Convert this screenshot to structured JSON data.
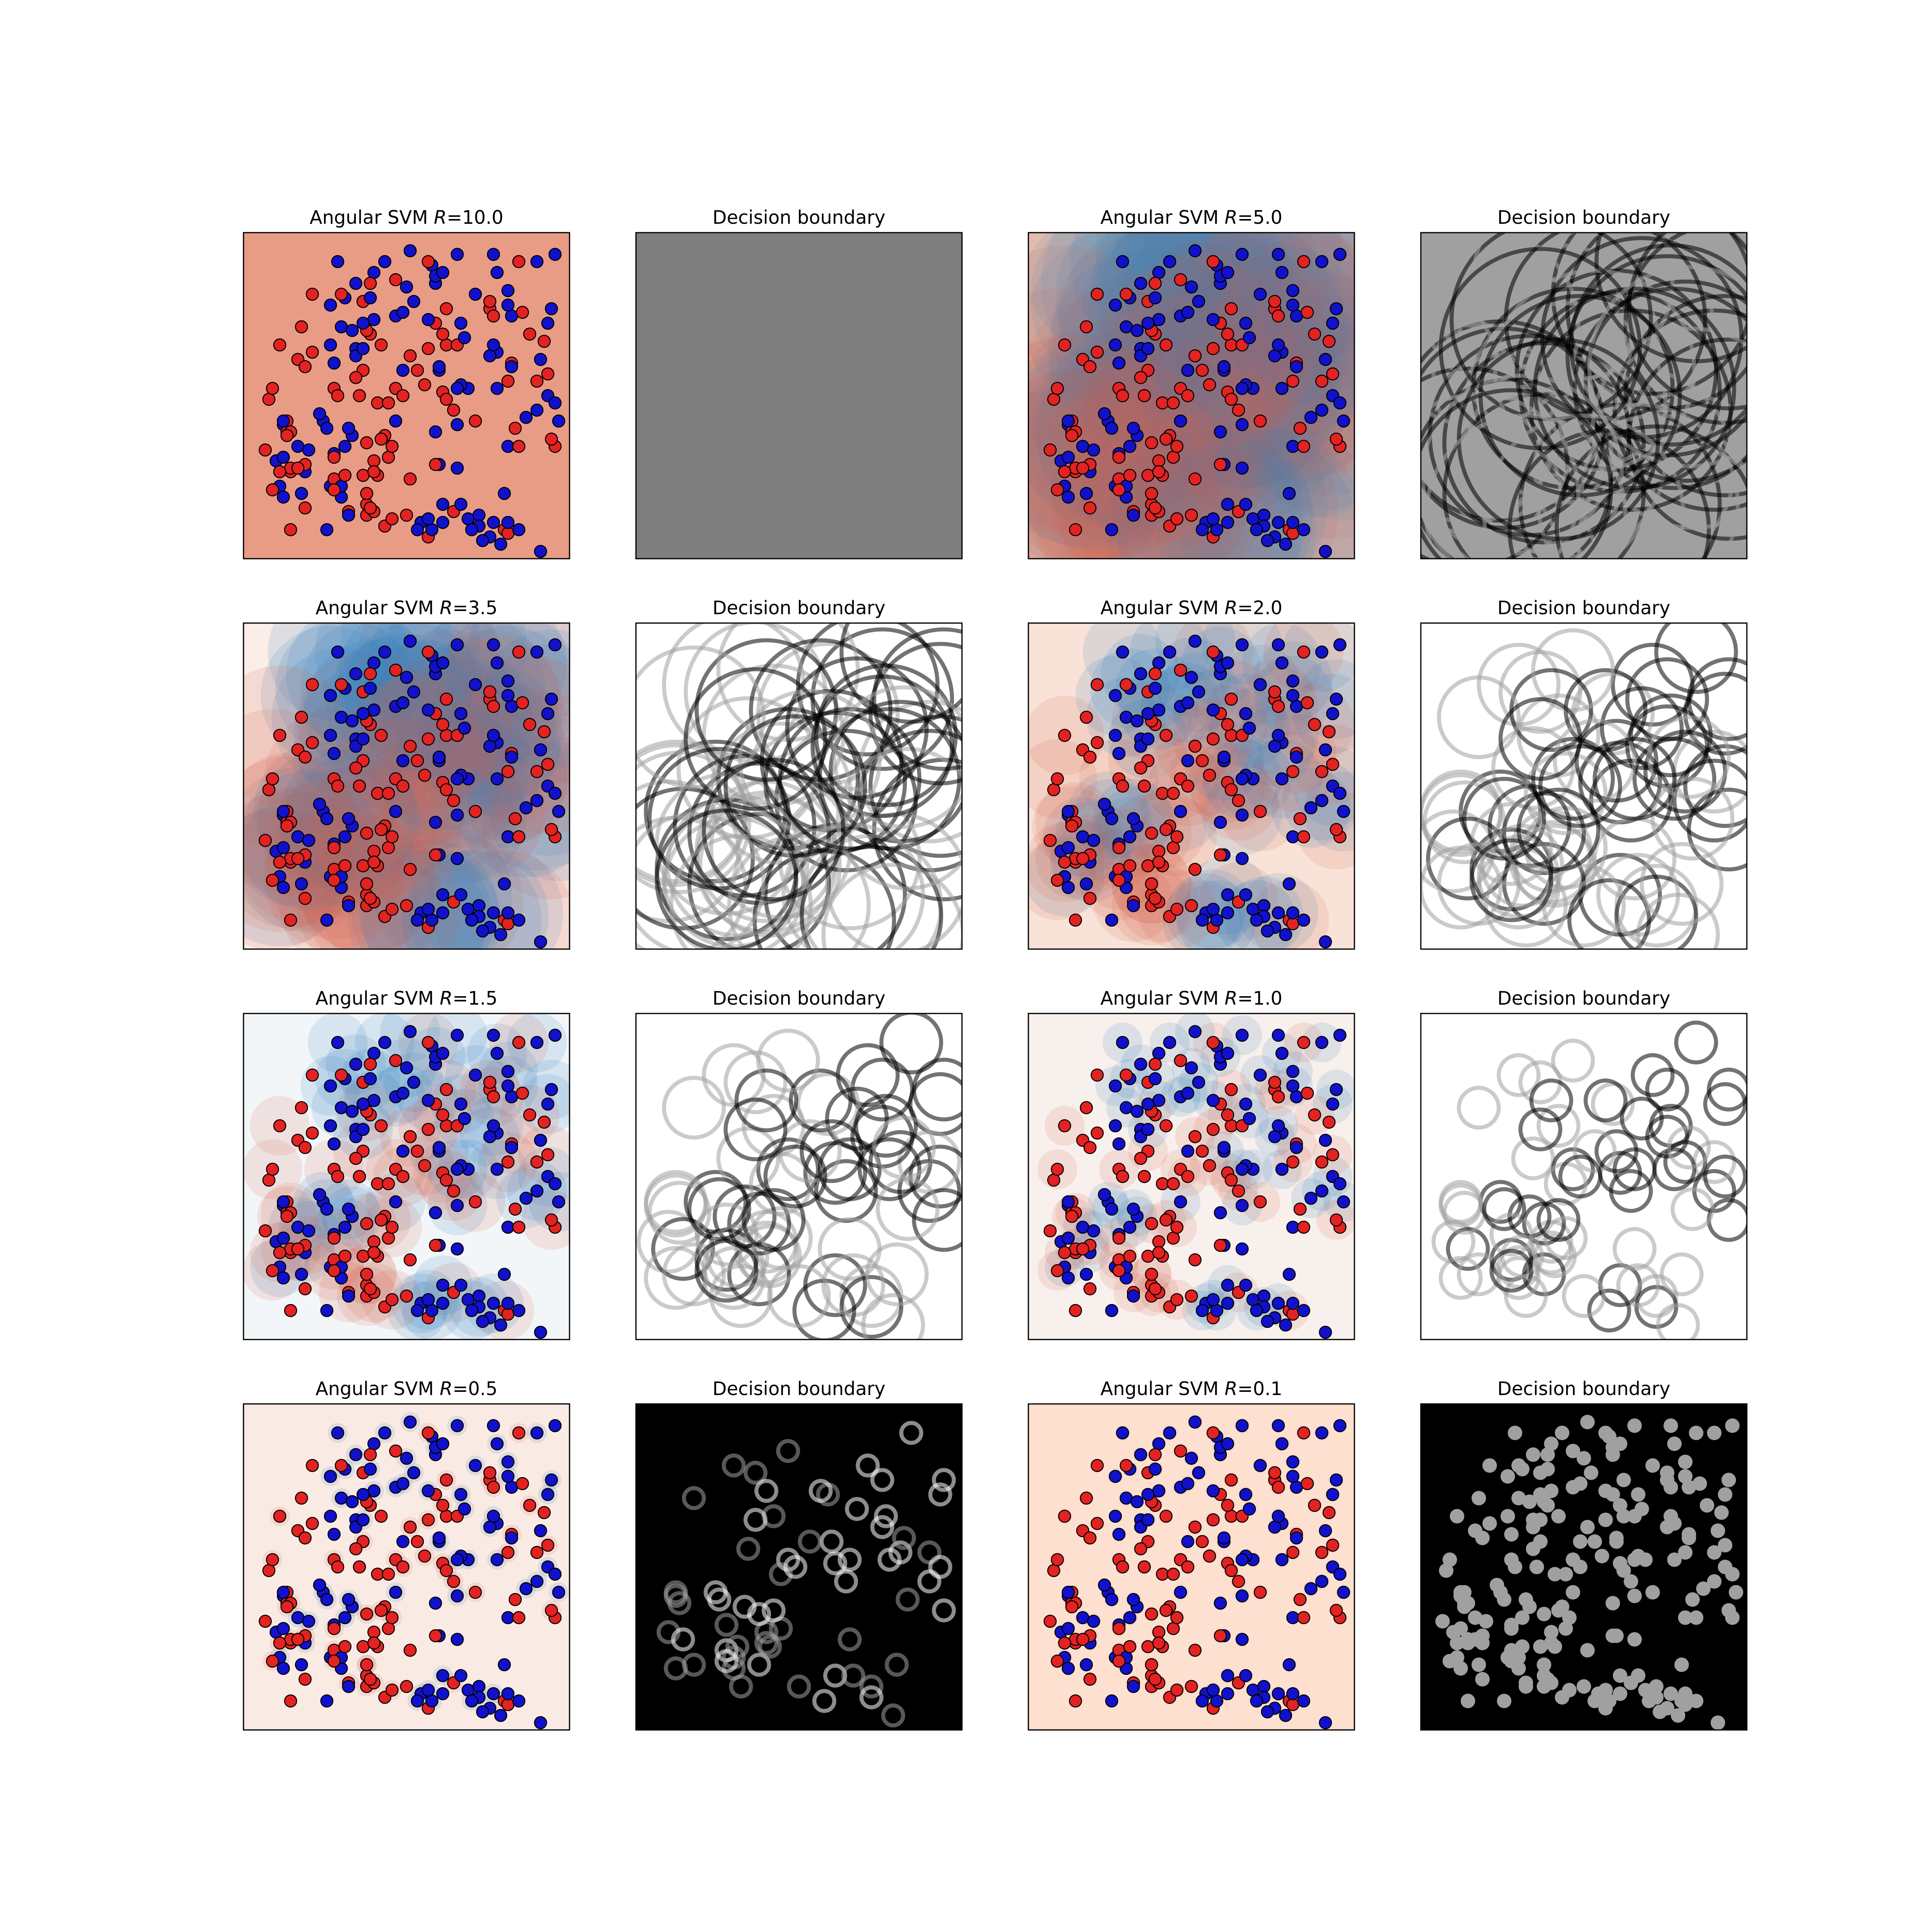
{
  "figure": {
    "background": "#ffffff",
    "colormap": "RdBu",
    "class_colors": {
      "class_a": "#e32222",
      "class_b": "#1111cc",
      "edge": "#000000"
    }
  },
  "points": [
    [
      5.5,
      1.5,
      1
    ],
    [
      4.6,
      2.2,
      0
    ],
    [
      3.4,
      1.2,
      0
    ],
    [
      3.6,
      2.4,
      1
    ],
    [
      2.8,
      3.1,
      1
    ],
    [
      3.9,
      3.4,
      0
    ],
    [
      2.2,
      3.8,
      1
    ],
    [
      3.9,
      0.9,
      0
    ],
    [
      6.9,
      1.0,
      1
    ],
    [
      1.1,
      3.7,
      1
    ],
    [
      2.8,
      7.2,
      1
    ],
    [
      2.1,
      4.0,
      1
    ],
    [
      6.4,
      7.3,
      1
    ],
    [
      2.4,
      2.0,
      1
    ],
    [
      6.2,
      4.7,
      1
    ],
    [
      3.6,
      2.7,
      0
    ],
    [
      7.3,
      7.4,
      1
    ],
    [
      3.5,
      6.2,
      0
    ],
    [
      8.4,
      6.5,
      1
    ],
    [
      5.5,
      1.0,
      1
    ],
    [
      2.5,
      4.7,
      0
    ],
    [
      0.9,
      2.7,
      1
    ],
    [
      3.9,
      8.2,
      1
    ],
    [
      7.4,
      6.7,
      1
    ],
    [
      3.4,
      1.8,
      0
    ],
    [
      1.3,
      2.4,
      0
    ],
    [
      1.5,
      3.1,
      1
    ],
    [
      3.3,
      7.1,
      0
    ],
    [
      4.2,
      3.8,
      1
    ],
    [
      5.2,
      8.1,
      1
    ],
    [
      1.3,
      2.5,
      0
    ],
    [
      1.9,
      5.7,
      0
    ],
    [
      4.2,
      6.7,
      1
    ],
    [
      2.7,
      1.7,
      1
    ],
    [
      5.9,
      3.7,
      1
    ],
    [
      5.3,
      7.6,
      1
    ],
    [
      8.1,
      4.1,
      1
    ],
    [
      1.9,
      7.3,
      0
    ],
    [
      3.3,
      5.2,
      0
    ],
    [
      1.2,
      3.5,
      0
    ],
    [
      8.7,
      3.8,
      1
    ],
    [
      8.2,
      0.2,
      1
    ],
    [
      6.8,
      6.9,
      0
    ],
    [
      5.4,
      2.6,
      1
    ],
    [
      7.0,
      7.9,
      1
    ],
    [
      8.1,
      4.9,
      0
    ],
    [
      5.1,
      8.2,
      0
    ],
    [
      1.2,
      3.8,
      0
    ],
    [
      5.8,
      4.1,
      0
    ],
    [
      3.3,
      2.3,
      0
    ],
    [
      1.7,
      2.4,
      1
    ],
    [
      5.3,
      6.5,
      0
    ],
    [
      7.2,
      0.8,
      0
    ],
    [
      3.1,
      5.8,
      1
    ],
    [
      2.5,
      2.2,
      0
    ],
    [
      6.8,
      7.1,
      0
    ],
    [
      5.9,
      8.4,
      1
    ],
    [
      3.1,
      5.0,
      0
    ],
    [
      1.7,
      2.6,
      0
    ],
    [
      8.6,
      3.1,
      0
    ],
    [
      8.4,
      4.5,
      1
    ],
    [
      7.3,
      0.7,
      0
    ],
    [
      5.8,
      1.3,
      0
    ],
    [
      3.7,
      2.3,
      0
    ],
    [
      5.3,
      7.8,
      1
    ],
    [
      0.7,
      4.4,
      0
    ],
    [
      4.2,
      4.7,
      0
    ],
    [
      4.4,
      5.2,
      1
    ],
    [
      3.5,
      7.2,
      1
    ],
    [
      3.8,
      5.9,
      0
    ],
    [
      5.6,
      6.9,
      0
    ],
    [
      3.6,
      7.9,
      1
    ],
    [
      5.5,
      4.6,
      0
    ],
    [
      3.2,
      4.5,
      0
    ],
    [
      5.0,
      4.8,
      0
    ],
    [
      5.9,
      2.5,
      1
    ],
    [
      2.4,
      7.0,
      1
    ],
    [
      7.7,
      6.8,
      0
    ],
    [
      8.5,
      3.3,
      0
    ],
    [
      1.3,
      0.8,
      0
    ],
    [
      7.8,
      3.9,
      1
    ],
    [
      2.7,
      2.0,
      1
    ],
    [
      7.3,
      7.0,
      1
    ],
    [
      6.2,
      1.1,
      1
    ],
    [
      7.0,
      4.7,
      1
    ],
    [
      5.3,
      3.5,
      1
    ],
    [
      2.7,
      6.4,
      1
    ],
    [
      1.1,
      3.8,
      1
    ],
    [
      3.4,
      6.3,
      0
    ],
    [
      7.3,
      3.1,
      1
    ],
    [
      5.1,
      6.6,
      1
    ],
    [
      8.2,
      5.5,
      1
    ],
    [
      1.3,
      3.5,
      0
    ],
    [
      2.7,
      7.3,
      0
    ],
    [
      6.4,
      3.8,
      0
    ],
    [
      5.1,
      0.6,
      0
    ],
    [
      3.4,
      3.2,
      0
    ],
    [
      2.5,
      5.4,
      1
    ],
    [
      4.9,
      1.0,
      1
    ],
    [
      4.0,
      2.8,
      0
    ],
    [
      1.0,
      2.0,
      1
    ],
    [
      8.6,
      8.4,
      1
    ],
    [
      7.3,
      4.9,
      0
    ],
    [
      1.5,
      5.5,
      0
    ],
    [
      4.7,
      7.1,
      1
    ],
    [
      1.1,
      1.7,
      1
    ],
    [
      4.6,
      8.5,
      1
    ],
    [
      8.3,
      6.0,
      0
    ],
    [
      3.0,
      3.4,
      1
    ],
    [
      3.7,
      4.3,
      0
    ],
    [
      4.5,
      7.5,
      1
    ],
    [
      2.5,
      2.9,
      1
    ],
    [
      4.8,
      0.8,
      1
    ],
    [
      5.6,
      5.9,
      0
    ],
    [
      2.3,
      3.6,
      1
    ],
    [
      6.0,
      4.8,
      1
    ],
    [
      5.6,
      4.4,
      0
    ],
    [
      4.0,
      4.3,
      0
    ],
    [
      2.9,
      1.3,
      0
    ],
    [
      3.4,
      1.5,
      0
    ],
    [
      3.6,
      6.6,
      1
    ],
    [
      0.6,
      3.0,
      0
    ],
    [
      3.4,
      1.8,
      0
    ],
    [
      6.5,
      1.2,
      1
    ],
    [
      7.4,
      5.4,
      0
    ],
    [
      8.6,
      4.3,
      1
    ],
    [
      6.5,
      0.9,
      1
    ],
    [
      3.3,
      6.5,
      1
    ],
    [
      2.6,
      8.2,
      1
    ],
    [
      4.2,
      7.7,
      0
    ],
    [
      0.8,
      1.9,
      0
    ],
    [
      5.3,
      2.6,
      0
    ],
    [
      5.4,
      5.2,
      1
    ],
    [
      7.0,
      5.7,
      1
    ],
    [
      8.1,
      8.2,
      1
    ],
    [
      6.0,
      1.5,
      1
    ],
    [
      6.0,
      6.5,
      1
    ],
    [
      3.0,
      6.3,
      1
    ],
    [
      7.6,
      8.2,
      0
    ],
    [
      2.3,
      0.8,
      1
    ],
    [
      3.6,
      1.3,
      0
    ],
    [
      1.6,
      6.4,
      0
    ],
    [
      3.1,
      7.6,
      1
    ],
    [
      5.9,
      5.9,
      0
    ],
    [
      5.2,
      0.8,
      1
    ],
    [
      5.5,
      7.9,
      1
    ],
    [
      6.9,
      6.7,
      0
    ],
    [
      7.2,
      1.8,
      1
    ],
    [
      5.1,
      1.1,
      1
    ],
    [
      5.4,
      5.3,
      1
    ],
    [
      6.1,
      6.1,
      1
    ],
    [
      1.7,
      5.3,
      0
    ],
    [
      1.0,
      5.9,
      0
    ],
    [
      7.1,
      0.4,
      1
    ],
    [
      4.1,
      1.1,
      0
    ],
    [
      2.6,
      4.5,
      0
    ],
    [
      6.8,
      5.6,
      1
    ],
    [
      3.1,
      5.6,
      1
    ],
    [
      5.5,
      6.2,
      0
    ],
    [
      7.5,
      3.6,
      0
    ],
    [
      8.4,
      5.1,
      0
    ],
    [
      3.2,
      4.5,
      0
    ],
    [
      6.9,
      5.9,
      1
    ],
    [
      3.5,
      1.4,
      0
    ],
    [
      0.8,
      4.7,
      0
    ],
    [
      4.8,
      5.2,
      0
    ],
    [
      1.0,
      2.4,
      0
    ],
    [
      2.4,
      5.9,
      1
    ],
    [
      3.3,
      5.8,
      1
    ],
    [
      7.6,
      3.1,
      0
    ],
    [
      4.1,
      3.1,
      0
    ],
    [
      2.8,
      2.3,
      0
    ],
    [
      4.4,
      6.8,
      1
    ],
    [
      1.7,
      1.4,
      0
    ],
    [
      4.4,
      4.5,
      0
    ],
    [
      7.6,
      0.8,
      1
    ],
    [
      1.8,
      3.0,
      1
    ],
    [
      4.5,
      1.2,
      0
    ],
    [
      6.3,
      0.8,
      1
    ],
    [
      6.8,
      0.6,
      1
    ],
    [
      5.9,
      4.7,
      1
    ],
    [
      1.1,
      2.8,
      1
    ],
    [
      4.6,
      5.6,
      0
    ],
    [
      1.6,
      1.8,
      1
    ],
    [
      5.1,
      5.8,
      0
    ],
    [
      3.5,
      7.6,
      0
    ],
    [
      8.5,
      6.9,
      1
    ],
    [
      3.6,
      2.4,
      0
    ],
    [
      2.9,
      3.6,
      1
    ],
    [
      7.4,
      5.3,
      1
    ],
    [
      1.2,
      3.4,
      0
    ],
    [
      6.6,
      0.5,
      1
    ],
    [
      3.8,
      3.3,
      0
    ],
    [
      1.5,
      2.5,
      0
    ],
    [
      2.5,
      2.8,
      0
    ],
    [
      2.9,
      1.2,
      1
    ],
    [
      7.9,
      6.2,
      0
    ],
    [
      7.3,
      1.0,
      1
    ],
    [
      2.5,
      1.9,
      0
    ],
    [
      6.9,
      8.4,
      1
    ]
  ],
  "panels": [
    {
      "title": "Angular SVM ",
      "title_suffix": "=10.0",
      "kind": "svm",
      "R": 10.0,
      "fill": "#e89c86"
    },
    {
      "title": "Decision boundary",
      "title_suffix": "",
      "kind": "boundary",
      "R": 10.0,
      "fill": "#7f7f7f"
    },
    {
      "title": "Angular SVM ",
      "title_suffix": "=5.0",
      "kind": "svm",
      "R": 5.0,
      "fill": "#f6c4ac"
    },
    {
      "title": "Decision boundary",
      "title_suffix": "",
      "kind": "boundary",
      "R": 5.0,
      "fill": "#a0a0a0"
    },
    {
      "title": "Angular SVM ",
      "title_suffix": "=3.5",
      "kind": "svm",
      "R": 3.5,
      "fill": "#fbeee8"
    },
    {
      "title": "Decision boundary",
      "title_suffix": "",
      "kind": "boundary",
      "R": 3.5,
      "fill": "#ffffff"
    },
    {
      "title": "Angular SVM ",
      "title_suffix": "=2.0",
      "kind": "svm",
      "R": 2.0,
      "fill": "#f9e3d8"
    },
    {
      "title": "Decision boundary",
      "title_suffix": "",
      "kind": "boundary",
      "R": 2.0,
      "fill": "#ffffff"
    },
    {
      "title": "Angular SVM ",
      "title_suffix": "=1.5",
      "kind": "svm",
      "R": 1.5,
      "fill": "#f3f6f9"
    },
    {
      "title": "Decision boundary",
      "title_suffix": "",
      "kind": "boundary",
      "R": 1.5,
      "fill": "#ffffff"
    },
    {
      "title": "Angular SVM ",
      "title_suffix": "=1.0",
      "kind": "svm",
      "R": 1.0,
      "fill": "#f8f0ec"
    },
    {
      "title": "Decision boundary",
      "title_suffix": "",
      "kind": "boundary",
      "R": 1.0,
      "fill": "#ffffff"
    },
    {
      "title": "Angular SVM ",
      "title_suffix": "=0.5",
      "kind": "svm",
      "R": 0.5,
      "fill": "#faeae4"
    },
    {
      "title": "Decision boundary",
      "title_suffix": "",
      "kind": "boundary",
      "R": 0.5,
      "fill": "#000000"
    },
    {
      "title": "Angular SVM ",
      "title_suffix": "=0.1",
      "kind": "svm",
      "R": 0.1,
      "fill": "#fde0d0"
    },
    {
      "title": "Decision boundary",
      "title_suffix": "",
      "kind": "boundary",
      "R": 0.1,
      "fill": "#000000"
    }
  ],
  "chart_data": {
    "type": "scatter",
    "title": "",
    "xlabel": "",
    "ylabel": "",
    "xlim": [
      0,
      9
    ],
    "ylim": [
      0,
      9
    ],
    "ticks": "none",
    "panel_titles": [
      "Angular SVM R=10.0",
      "Decision boundary",
      "Angular SVM R=5.0",
      "Decision boundary",
      "Angular SVM R=3.5",
      "Decision boundary",
      "Angular SVM R=2.0",
      "Decision boundary",
      "Angular SVM R=1.5",
      "Decision boundary",
      "Angular SVM R=1.0",
      "Decision boundary",
      "Angular SVM R=0.5",
      "Decision boundary",
      "Angular SVM R=0.1",
      "Decision boundary"
    ],
    "R_values": [
      10.0,
      5.0,
      3.5,
      2.0,
      1.5,
      1.0,
      0.5,
      0.1
    ],
    "layout": "4x4 grid, SVM panels in columns 1 and 3, boundary panels in columns 2 and 4",
    "series": [
      {
        "name": "",
        "color": "#e32222",
        "marker": "circle"
      },
      {
        "name": "",
        "color": "#1111cc",
        "marker": "circle"
      }
    ]
  }
}
